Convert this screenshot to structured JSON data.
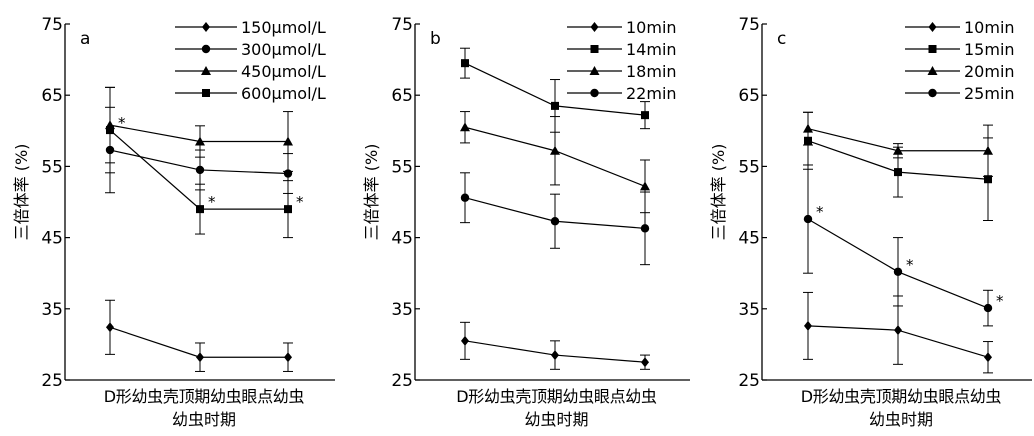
{
  "chart_data": [
    {
      "type": "line",
      "panel_label": "a",
      "categories": [
        "D形幼虫",
        "壳顶期幼虫",
        "眼点幼虫"
      ],
      "xlabel": "幼虫时期",
      "ylabel": "三倍体率 (%)",
      "ylim": [
        25,
        75
      ],
      "yticks": [
        25,
        35,
        45,
        55,
        65,
        75
      ],
      "grid": false,
      "legend_position": "top-right",
      "series": [
        {
          "name": "150μmol/L",
          "marker": "diamond",
          "values": [
            32.4,
            28.2,
            28.2
          ],
          "errors": [
            3.8,
            2.0,
            2.0
          ],
          "sig": [
            false,
            false,
            false
          ]
        },
        {
          "name": "300μmol/L",
          "marker": "circle",
          "values": [
            57.3,
            54.5,
            54.0
          ],
          "errors": [
            6.0,
            2.8,
            2.8
          ],
          "sig": [
            false,
            false,
            false
          ]
        },
        {
          "name": "450μmol/L",
          "marker": "triangle",
          "values": [
            60.8,
            58.5,
            58.5
          ],
          "errors": [
            5.3,
            2.2,
            4.2
          ],
          "sig": [
            false,
            false,
            false
          ]
        },
        {
          "name": "600μmol/L",
          "marker": "square",
          "values": [
            60.1,
            49.0,
            49.0
          ],
          "errors": [
            6.0,
            3.5,
            4.0
          ],
          "sig": [
            true,
            true,
            true
          ]
        }
      ]
    },
    {
      "type": "line",
      "panel_label": "b",
      "categories": [
        "D形幼虫",
        "壳顶期幼虫",
        "眼点幼虫"
      ],
      "xlabel": "幼虫时期",
      "ylabel": "三倍体率 (%)",
      "ylim": [
        25,
        75
      ],
      "yticks": [
        25,
        35,
        45,
        55,
        65,
        75
      ],
      "grid": false,
      "legend_position": "top-right",
      "series": [
        {
          "name": "10min",
          "marker": "diamond",
          "values": [
            30.5,
            28.5,
            27.5
          ],
          "errors": [
            2.6,
            2.0,
            1.0
          ],
          "sig": [
            false,
            false,
            false
          ]
        },
        {
          "name": "14min",
          "marker": "square",
          "values": [
            69.5,
            63.5,
            62.2
          ],
          "errors": [
            2.1,
            3.7,
            1.9
          ],
          "sig": [
            false,
            false,
            false
          ]
        },
        {
          "name": "18min",
          "marker": "triangle",
          "values": [
            60.5,
            57.2,
            52.2
          ],
          "errors": [
            2.2,
            4.8,
            3.7
          ],
          "sig": [
            false,
            false,
            false
          ]
        },
        {
          "name": "22min",
          "marker": "circle",
          "values": [
            50.6,
            47.3,
            46.3
          ],
          "errors": [
            3.5,
            3.8,
            5.1
          ],
          "sig": [
            false,
            false,
            false
          ]
        }
      ]
    },
    {
      "type": "line",
      "panel_label": "c",
      "categories": [
        "D形幼虫",
        "壳顶期幼虫",
        "眼点幼虫"
      ],
      "xlabel": "幼虫时期",
      "ylabel": "三倍体率 (%)",
      "ylim": [
        25,
        75
      ],
      "yticks": [
        25,
        35,
        45,
        55,
        65,
        75
      ],
      "grid": false,
      "legend_position": "top-right",
      "series": [
        {
          "name": "10min",
          "marker": "diamond",
          "values": [
            32.6,
            32.0,
            28.2
          ],
          "errors": [
            4.7,
            4.8,
            2.2
          ],
          "sig": [
            false,
            false,
            false
          ]
        },
        {
          "name": "15min",
          "marker": "square",
          "values": [
            58.6,
            54.2,
            53.2
          ],
          "errors": [
            4.0,
            3.5,
            5.8
          ],
          "sig": [
            false,
            false,
            false
          ]
        },
        {
          "name": "20min",
          "marker": "triangle",
          "values": [
            60.3,
            57.2,
            57.2
          ],
          "errors": [
            2.3,
            1.0,
            3.6
          ],
          "sig": [
            false,
            false,
            false
          ]
        },
        {
          "name": "25min",
          "marker": "circle",
          "values": [
            47.6,
            40.2,
            35.1
          ],
          "errors": [
            7.6,
            4.8,
            2.5
          ],
          "sig": [
            true,
            true,
            true
          ]
        }
      ]
    }
  ]
}
